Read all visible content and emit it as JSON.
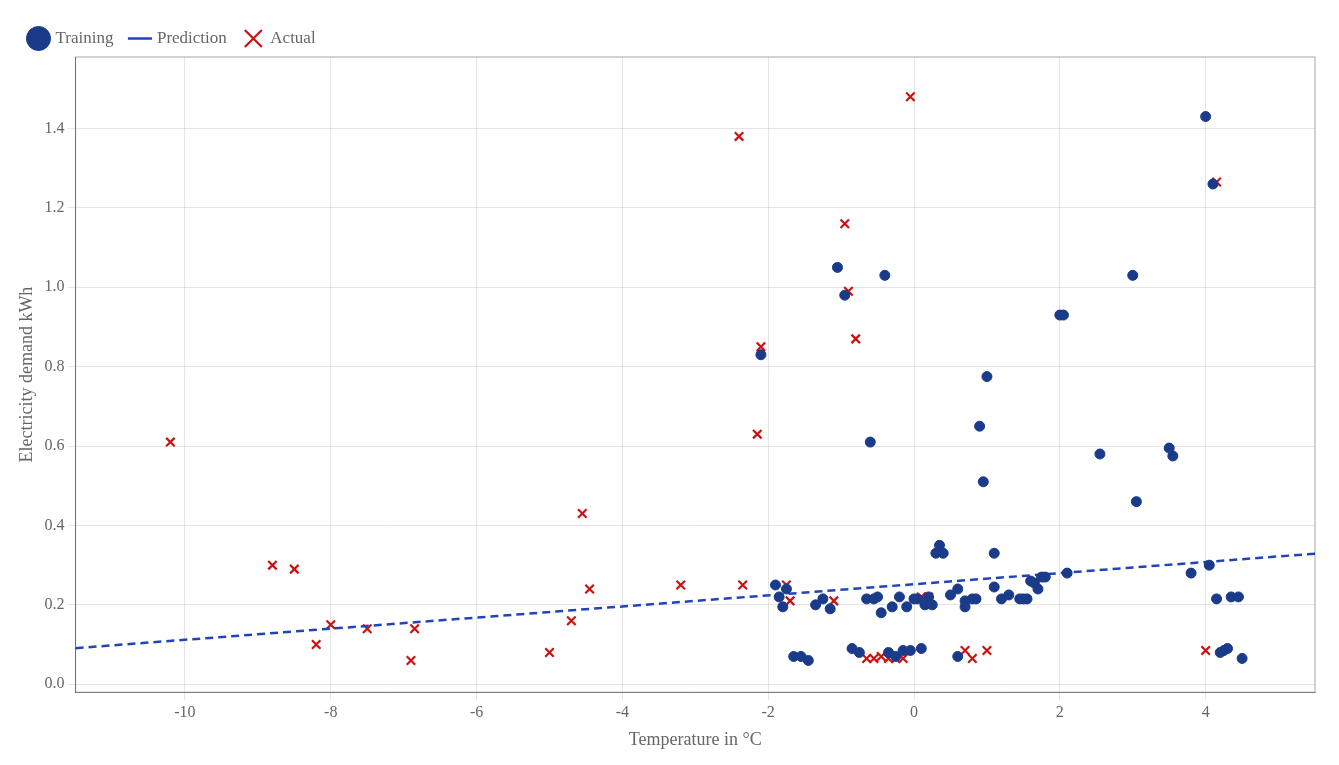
{
  "chart_data": {
    "type": "scatter",
    "xlabel": "Temperature in °C",
    "ylabel": "Electricity demand kWh",
    "xlim": [
      -11.5,
      5.5
    ],
    "ylim": [
      -0.02,
      1.58
    ],
    "xticks": [
      -10,
      -8,
      -6,
      -4,
      -2,
      0,
      2,
      4
    ],
    "yticks": [
      {
        "value": 0.0,
        "label": "0.0"
      },
      0.2,
      0.4,
      0.6,
      0.8,
      {
        "value": 1.0,
        "label": "1.0"
      },
      1.2,
      1.4
    ],
    "grid": true,
    "legend": "upper left",
    "series": [
      {
        "name": "Training",
        "type": "scatter",
        "color": "#1a3a8a",
        "marker": "circle",
        "x": [
          -2.1,
          -1.9,
          -1.85,
          -1.8,
          -1.75,
          -1.65,
          -1.55,
          -1.45,
          -1.35,
          -1.25,
          -1.15,
          -1.05,
          -0.95,
          -0.85,
          -0.75,
          -0.65,
          -0.55,
          -0.45,
          -0.35,
          -0.25,
          -0.15,
          -0.05,
          0.05,
          0.15,
          0.25,
          0.35,
          0.5,
          0.6,
          0.7,
          0.85,
          0.95,
          1.1,
          1.2,
          1.3,
          1.45,
          1.55,
          1.65,
          1.75,
          2.05,
          2.55,
          3.05,
          3.55,
          4.0,
          4.05,
          4.15,
          4.25,
          4.3,
          4.35,
          4.45,
          4.5,
          -0.6,
          -0.5,
          -0.4,
          -0.3,
          -0.2,
          -0.1,
          0.0,
          0.1,
          0.2,
          0.3,
          0.4,
          0.6,
          0.7,
          0.8,
          0.9,
          1.0,
          1.1,
          1.5,
          1.6,
          1.7,
          1.8,
          2.0,
          2.1,
          3.0,
          3.5,
          3.8,
          4.1,
          4.2
        ],
        "values": [
          0.83,
          0.25,
          0.22,
          0.195,
          0.24,
          0.07,
          0.07,
          0.06,
          0.2,
          0.215,
          0.19,
          1.05,
          0.98,
          0.09,
          0.08,
          0.215,
          0.215,
          0.18,
          0.08,
          0.07,
          0.085,
          0.085,
          0.215,
          0.2,
          0.2,
          0.35,
          0.225,
          0.24,
          0.21,
          0.215,
          0.51,
          0.245,
          0.215,
          0.225,
          0.215,
          0.215,
          0.255,
          0.27,
          0.93,
          0.58,
          0.46,
          0.575,
          1.43,
          0.3,
          0.215,
          0.085,
          0.09,
          0.22,
          0.22,
          0.065,
          0.61,
          0.22,
          1.03,
          0.195,
          0.22,
          0.195,
          0.215,
          0.09,
          0.22,
          0.33,
          0.33,
          0.07,
          0.195,
          0.215,
          0.65,
          0.775,
          0.33,
          0.215,
          0.26,
          0.24,
          0.27,
          0.93,
          0.28,
          1.03,
          0.595,
          0.28,
          1.26,
          0.08
        ]
      },
      {
        "name": "Prediction",
        "type": "line",
        "color": "#2244bb",
        "line_style": "dashed",
        "x": [
          -11.5,
          5.5
        ],
        "values": [
          0.091,
          0.329
        ]
      },
      {
        "name": "Actual",
        "type": "scatter",
        "color": "#cc1111",
        "marker": "x",
        "x": [
          -10.2,
          -8.8,
          -8.5,
          -8.2,
          -8.0,
          -7.5,
          -6.9,
          -6.85,
          -5.0,
          -4.7,
          -4.55,
          -4.45,
          -3.2,
          -2.4,
          -2.35,
          -2.15,
          -2.1,
          -1.75,
          -1.7,
          -1.1,
          -0.95,
          -0.9,
          -0.8,
          -0.65,
          -0.55,
          -0.45,
          -0.35,
          -0.25,
          -0.15,
          -0.05,
          0.1,
          0.2,
          0.7,
          0.8,
          1.0,
          4.0,
          4.15
        ],
        "values": [
          0.61,
          0.3,
          0.29,
          0.1,
          0.15,
          0.14,
          0.06,
          0.14,
          0.08,
          0.16,
          0.43,
          0.24,
          0.25,
          1.38,
          0.25,
          0.63,
          0.85,
          0.25,
          0.21,
          0.21,
          1.16,
          0.99,
          0.87,
          0.065,
          0.065,
          0.07,
          0.065,
          0.065,
          0.065,
          1.48,
          0.22,
          0.22,
          0.085,
          0.065,
          0.085,
          0.085,
          1.265
        ]
      }
    ]
  }
}
